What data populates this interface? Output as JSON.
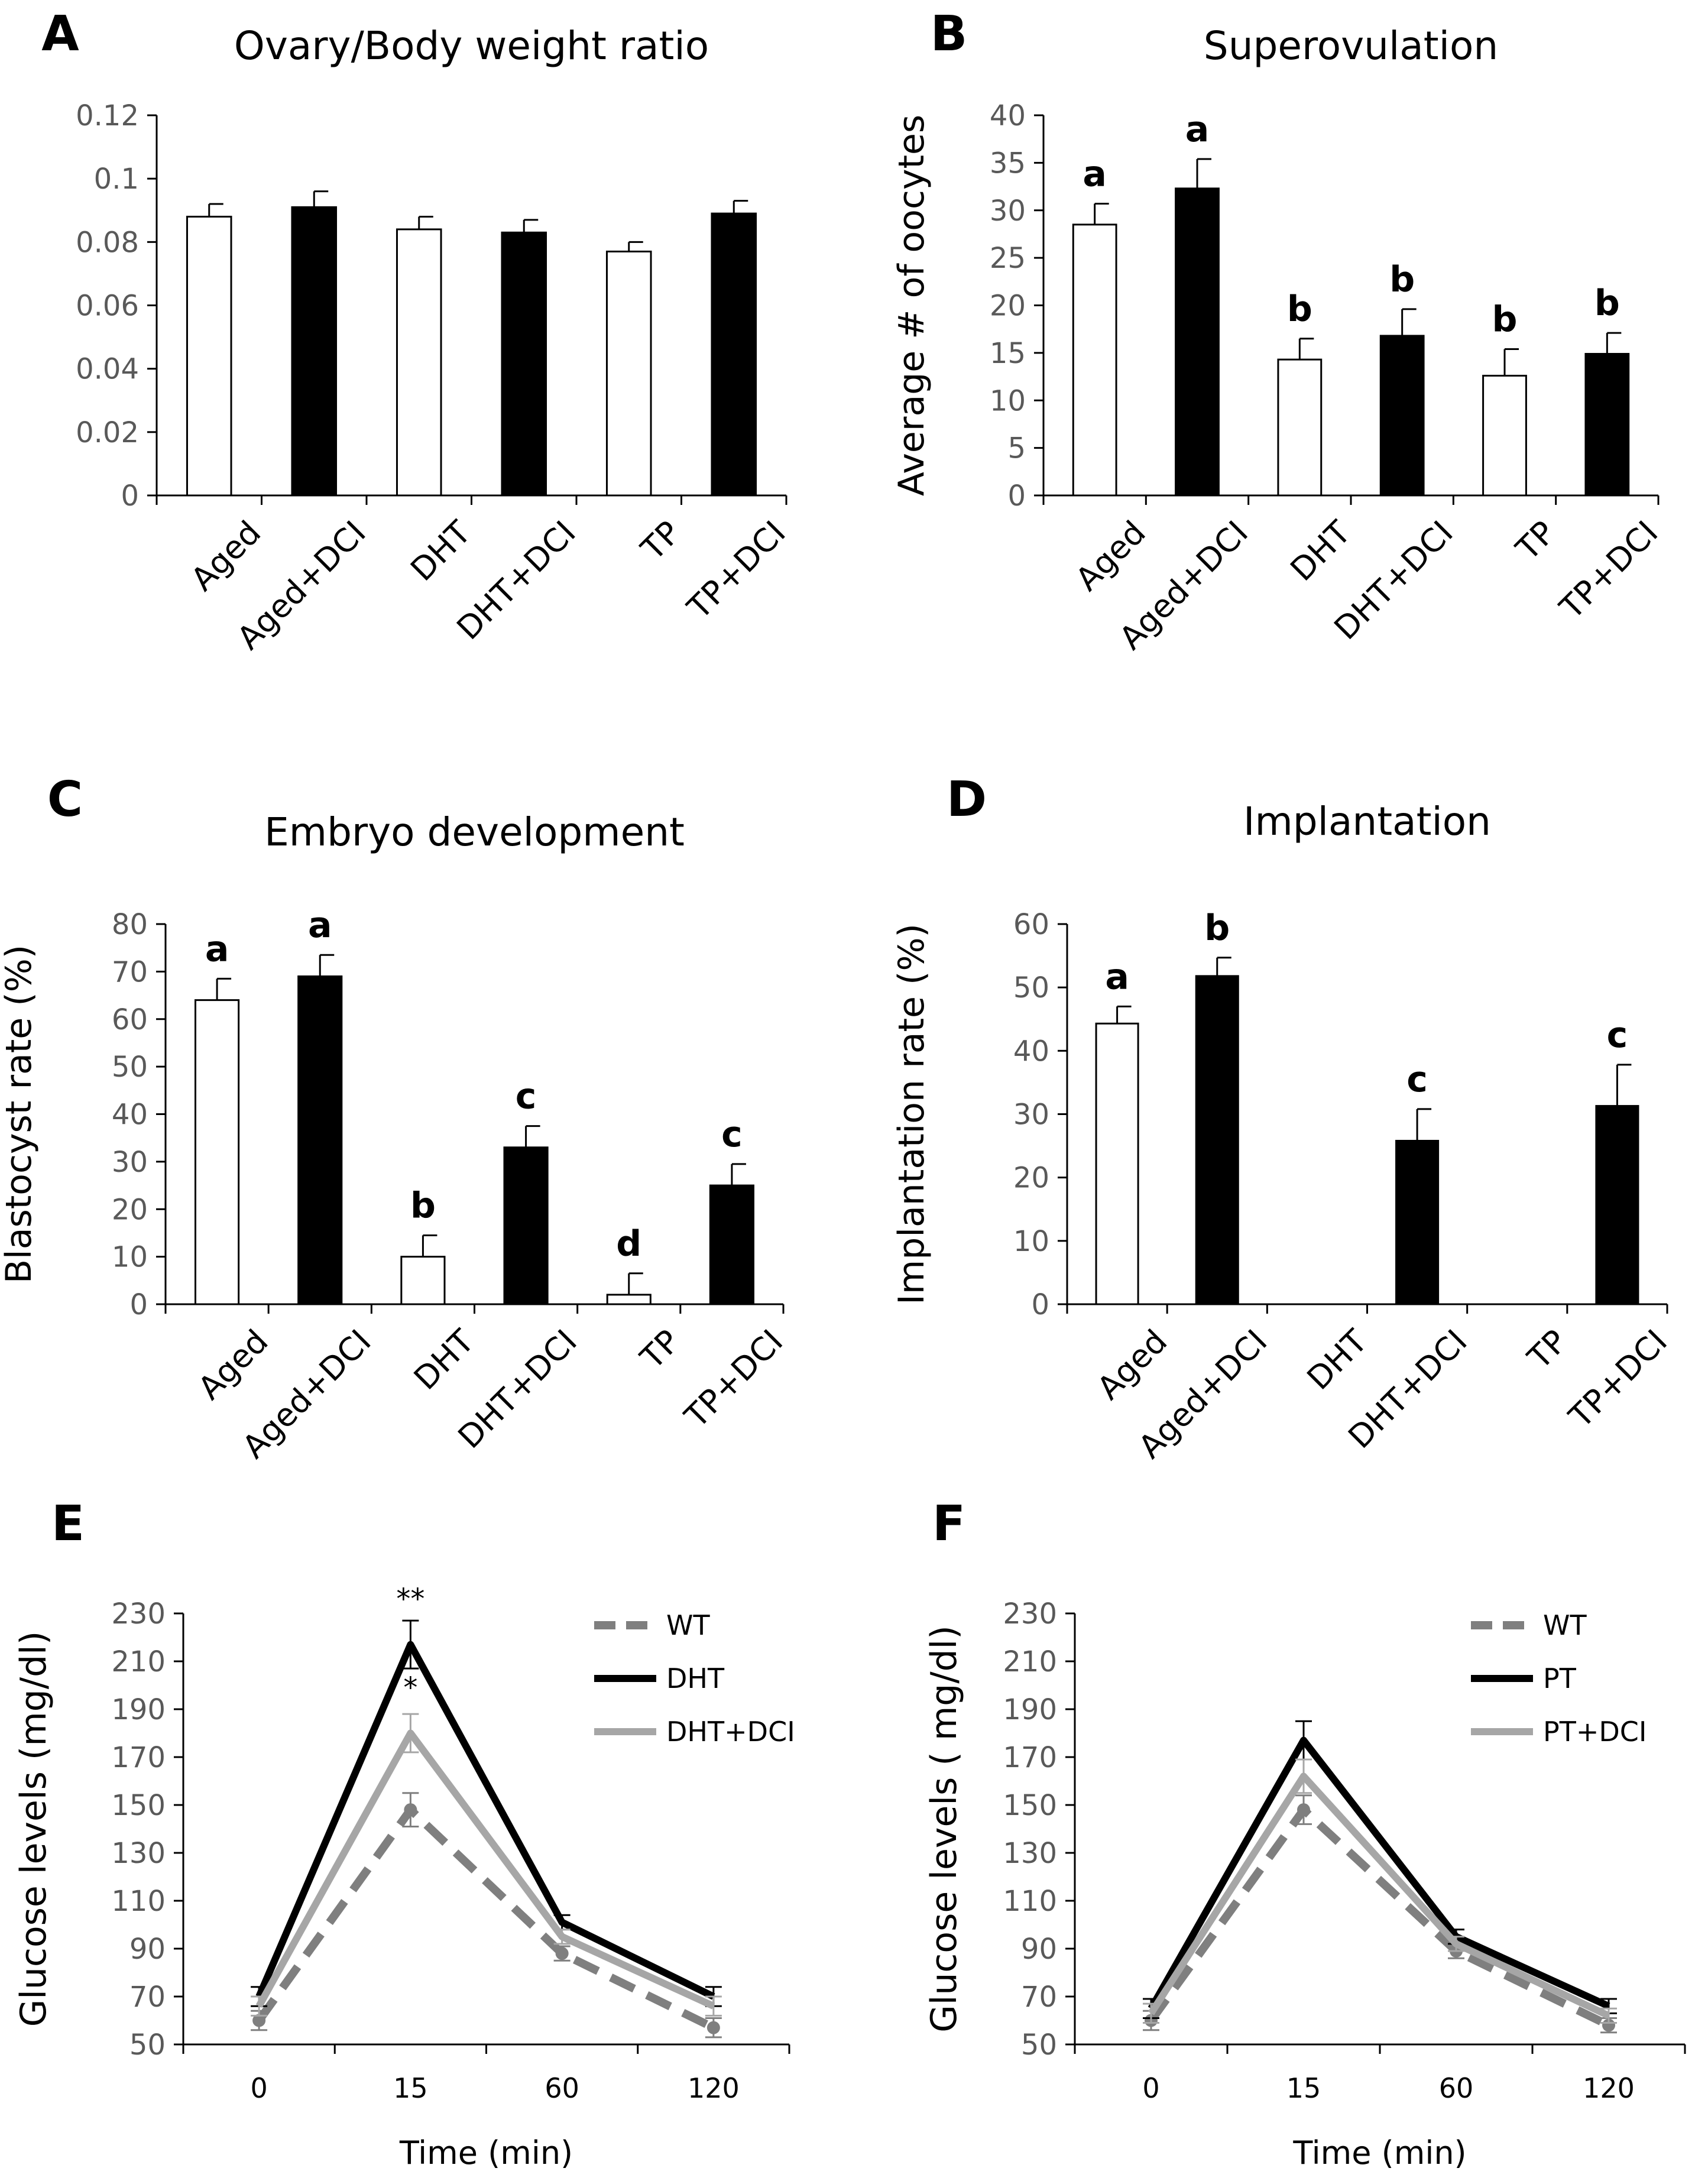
{
  "figure": {
    "colors": {
      "white_bar": "#ffffff",
      "black_bar": "#000000",
      "axis": "#000000",
      "tick_text": "#595959",
      "text": "#000000",
      "wt_line": "#7f7f7f",
      "treat_line": "#000000",
      "dci_line": "#a6a6a6"
    }
  },
  "chart_data": [
    {
      "panel": "A",
      "type": "bar",
      "title": "Ovary/Body weight ratio",
      "xlabel": "",
      "ylabel": "",
      "ylim": [
        0,
        0.12
      ],
      "yticks": [
        "0",
        "0.02",
        "0.04",
        "0.06",
        "0.08",
        "0.1",
        "0.12"
      ],
      "categories": [
        "Aged",
        "Aged+DCI",
        "DHT",
        "DHT+DCI",
        "TP",
        "TP+DCI"
      ],
      "values": [
        0.088,
        0.091,
        0.084,
        0.083,
        0.077,
        0.089
      ],
      "errors": [
        0.004,
        0.005,
        0.004,
        0.004,
        0.003,
        0.004
      ],
      "fill": [
        "white",
        "black",
        "white",
        "black",
        "white",
        "black"
      ],
      "letters": [
        "",
        "",
        "",
        "",
        "",
        ""
      ]
    },
    {
      "panel": "B",
      "type": "bar",
      "title": "Superovulation",
      "xlabel": "",
      "ylabel": "Average # of oocytes",
      "ylim": [
        0,
        40
      ],
      "yticks": [
        "0",
        "5",
        "10",
        "15",
        "20",
        "25",
        "30",
        "35",
        "40"
      ],
      "categories": [
        "Aged",
        "Aged+DCI",
        "DHT",
        "DHT+DCI",
        "TP",
        "TP+DCI"
      ],
      "values": [
        28.5,
        32.3,
        14.3,
        16.8,
        12.6,
        14.9
      ],
      "errors": [
        2.2,
        3.1,
        2.2,
        2.8,
        2.8,
        2.2
      ],
      "fill": [
        "white",
        "black",
        "white",
        "black",
        "white",
        "black"
      ],
      "letters": [
        "a",
        "a",
        "b",
        "b",
        "b",
        "b"
      ]
    },
    {
      "panel": "C",
      "type": "bar",
      "title": "Embryo development",
      "xlabel": "",
      "ylabel": "Blastocyst rate (%)",
      "ylim": [
        0,
        80
      ],
      "yticks": [
        "0",
        "10",
        "20",
        "30",
        "40",
        "50",
        "60",
        "70",
        "80"
      ],
      "categories": [
        "Aged",
        "Aged+DCI",
        "DHT",
        "DHT+DCI",
        "TP",
        "TP+DCI"
      ],
      "values": [
        64,
        69,
        10,
        33,
        2,
        25
      ],
      "errors": [
        4.5,
        4.5,
        4.5,
        4.5,
        4.5,
        4.5
      ],
      "fill": [
        "white",
        "black",
        "white",
        "black",
        "white",
        "black"
      ],
      "letters": [
        "a",
        "a",
        "b",
        "c",
        "d",
        "c"
      ]
    },
    {
      "panel": "D",
      "type": "bar",
      "title": "Implantation",
      "xlabel": "",
      "ylabel": "Implantation rate (%)",
      "ylim": [
        0,
        60
      ],
      "yticks": [
        "0",
        "10",
        "20",
        "30",
        "40",
        "50",
        "60"
      ],
      "categories": [
        "Aged",
        "Aged+DCI",
        "DHT",
        "DHT+DCI",
        "TP",
        "TP+DCI"
      ],
      "values": [
        44.3,
        51.8,
        0,
        25.8,
        0,
        31.3
      ],
      "errors": [
        2.7,
        2.9,
        0,
        5,
        0,
        6.5
      ],
      "fill": [
        "white",
        "black",
        "white",
        "black",
        "white",
        "black"
      ],
      "letters": [
        "a",
        "b",
        "",
        "c",
        "",
        "c"
      ]
    },
    {
      "panel": "E",
      "type": "line",
      "title": "",
      "xlabel": "Time (min)",
      "ylabel": "Glucose levels (mg/dl)",
      "ylim": [
        50,
        230
      ],
      "yticks": [
        "50",
        "70",
        "90",
        "110",
        "130",
        "150",
        "170",
        "190",
        "210",
        "230"
      ],
      "categories": [
        "0",
        "15",
        "60",
        "120"
      ],
      "series": [
        {
          "name": "WT",
          "style": "dashed",
          "values": [
            60,
            148,
            88,
            57
          ],
          "errors": [
            4,
            7,
            3,
            4
          ]
        },
        {
          "name": "DHT",
          "style": "black",
          "values": [
            70,
            217,
            101,
            70
          ],
          "errors": [
            4,
            10,
            3,
            4
          ]
        },
        {
          "name": "DHT+DCI",
          "style": "gray",
          "values": [
            66,
            180,
            95,
            66
          ],
          "errors": [
            4,
            8,
            3,
            4
          ]
        }
      ],
      "annotations": [
        {
          "text": "**",
          "category": "15",
          "y": 232
        },
        {
          "text": "*",
          "category": "15",
          "y": 195
        }
      ]
    },
    {
      "panel": "F",
      "type": "line",
      "title": "",
      "xlabel": "Time (min)",
      "ylabel": "Glucose levels ( mg/dl)",
      "ylim": [
        50,
        230
      ],
      "yticks": [
        "50",
        "70",
        "90",
        "110",
        "130",
        "150",
        "170",
        "190",
        "210",
        "230"
      ],
      "categories": [
        "0",
        "15",
        "60",
        "120"
      ],
      "series": [
        {
          "name": "WT",
          "style": "dashed",
          "values": [
            60,
            148,
            89,
            58
          ],
          "errors": [
            4,
            6,
            3,
            3
          ]
        },
        {
          "name": "PT",
          "style": "black",
          "values": [
            65,
            177,
            95,
            66
          ],
          "errors": [
            4,
            8,
            3,
            3
          ]
        },
        {
          "name": "PT+DCI",
          "style": "gray",
          "values": [
            63,
            162,
            92,
            62
          ],
          "errors": [
            4,
            7,
            3,
            3
          ]
        }
      ],
      "annotations": []
    }
  ]
}
